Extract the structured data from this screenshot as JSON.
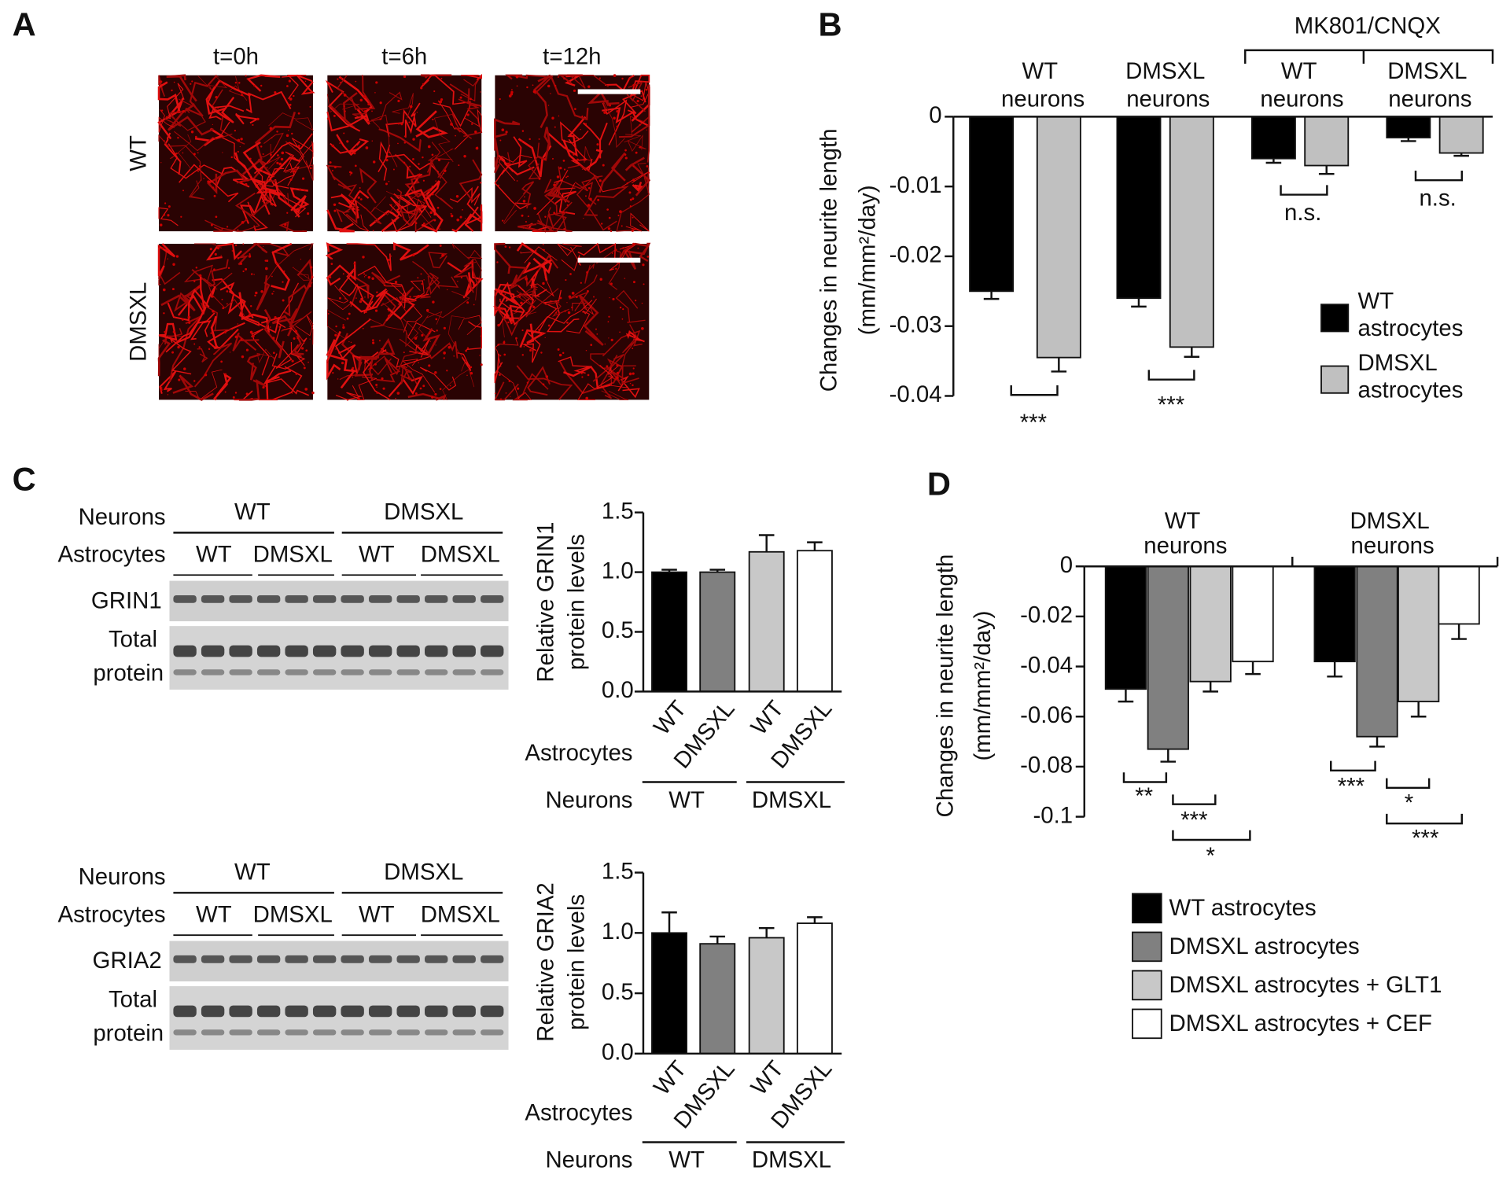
{
  "figure": {
    "panel_labels": [
      "A",
      "B",
      "C",
      "D"
    ],
    "panel_a": {
      "times": [
        "t=0h",
        "t=6h",
        "t=12h"
      ],
      "rows": [
        "WT",
        "DMSXL"
      ]
    },
    "blots": [
      {
        "neurons_label": "Neurons",
        "astrocytes_label": "Astrocytes",
        "neuron_groups": [
          "WT",
          "DMSXL"
        ],
        "astrocyte_groups": [
          "WT",
          "DMSXL",
          "WT",
          "DMSXL"
        ],
        "target": "GRIN1",
        "loading": "Total protein"
      },
      {
        "neurons_label": "Neurons",
        "astrocytes_label": "Astrocytes",
        "neuron_groups": [
          "WT",
          "DMSXL"
        ],
        "astrocyte_groups": [
          "WT",
          "DMSXL",
          "WT",
          "DMSXL"
        ],
        "target": "GRIA2",
        "loading": "Total protein"
      }
    ]
  },
  "chart_data": [
    {
      "type": "bar",
      "ylabel": [
        "Changes in neurite length",
        "(mm/mm²/day)"
      ],
      "group_header": "MK801/CNQX",
      "categories": [
        "WT neurons",
        "DMSXL neurons",
        "WT neurons",
        "DMSXL neurons"
      ],
      "series": [
        {
          "name": "WT astrocytes",
          "color": "#000000",
          "values": [
            -0.025,
            -0.026,
            -0.006,
            -0.003
          ],
          "errors": [
            0.0011,
            0.0012,
            0.0006,
            0.0005
          ]
        },
        {
          "name": "DMSXL astrocytes",
          "color": "#c0c0c0",
          "values": [
            -0.0345,
            -0.033,
            -0.007,
            -0.0052
          ],
          "errors": [
            0.002,
            0.0014,
            0.0012,
            0.0004
          ]
        }
      ],
      "ylim": [
        -0.04,
        0
      ],
      "yticks": [
        0,
        -0.01,
        -0.02,
        -0.03,
        -0.04
      ],
      "legend": "lower right",
      "annotations": [
        "***",
        "***",
        "n.s.",
        "n.s."
      ]
    },
    {
      "type": "bar",
      "ylabel": [
        "Relative GRIN1",
        "protein levels"
      ],
      "categories": [
        "WT",
        "DMSXL",
        "WT",
        "DMSXL"
      ],
      "x_label": "Astrocytes",
      "x_outer_label": "Neurons",
      "x_outer_categories": [
        "WT",
        "DMSXL"
      ],
      "values": [
        1.0,
        1.0,
        1.17,
        1.18
      ],
      "errors": [
        0.02,
        0.02,
        0.14,
        0.07
      ],
      "colors": [
        "#000000",
        "#808080",
        "#c8c8c8",
        "#ffffff"
      ],
      "ylim": [
        0,
        1.5
      ],
      "yticks": [
        {
          "value": 0,
          "label": "0.0"
        },
        0.5,
        {
          "value": 1,
          "label": "1.0"
        },
        1.5
      ]
    },
    {
      "type": "bar",
      "ylabel": [
        "Relative GRIA2",
        "protein levels"
      ],
      "categories": [
        "WT",
        "DMSXL",
        "WT",
        "DMSXL"
      ],
      "x_label": "Astrocytes",
      "x_outer_label": "Neurons",
      "x_outer_categories": [
        "WT",
        "DMSXL"
      ],
      "values": [
        1.0,
        0.91,
        0.96,
        1.08
      ],
      "errors": [
        0.17,
        0.06,
        0.08,
        0.05
      ],
      "colors": [
        "#000000",
        "#808080",
        "#c8c8c8",
        "#ffffff"
      ],
      "ylim": [
        0,
        1.5
      ],
      "yticks": [
        {
          "value": 0,
          "label": "0.0"
        },
        0.5,
        {
          "value": 1,
          "label": "1.0"
        },
        1.5
      ]
    },
    {
      "type": "bar",
      "ylabel": [
        "Changes in neurite length",
        "(mm/mm²/day)"
      ],
      "categories": [
        "WT neurons",
        "DMSXL neurons"
      ],
      "series": [
        {
          "name": "WT astrocytes",
          "color": "#000000",
          "values": [
            -0.049,
            -0.038
          ],
          "errors": [
            0.005,
            0.006
          ]
        },
        {
          "name": "DMSXL astrocytes",
          "color": "#808080",
          "values": [
            -0.073,
            -0.068
          ],
          "errors": [
            0.005,
            0.004
          ]
        },
        {
          "name": "DMSXL astrocytes + GLT1",
          "color": "#c8c8c8",
          "values": [
            -0.046,
            -0.054
          ],
          "errors": [
            0.004,
            0.006
          ]
        },
        {
          "name": "DMSXL astrocytes + CEF",
          "color": "#ffffff",
          "values": [
            -0.038,
            -0.023
          ],
          "errors": [
            0.005,
            0.006
          ]
        }
      ],
      "ylim": [
        -0.1,
        0
      ],
      "yticks": [
        0,
        -0.02,
        -0.04,
        -0.06,
        -0.08,
        -0.1
      ],
      "legend": "bottom",
      "annotations": [
        "**",
        "***",
        "*",
        "***",
        "*",
        "***"
      ]
    }
  ]
}
